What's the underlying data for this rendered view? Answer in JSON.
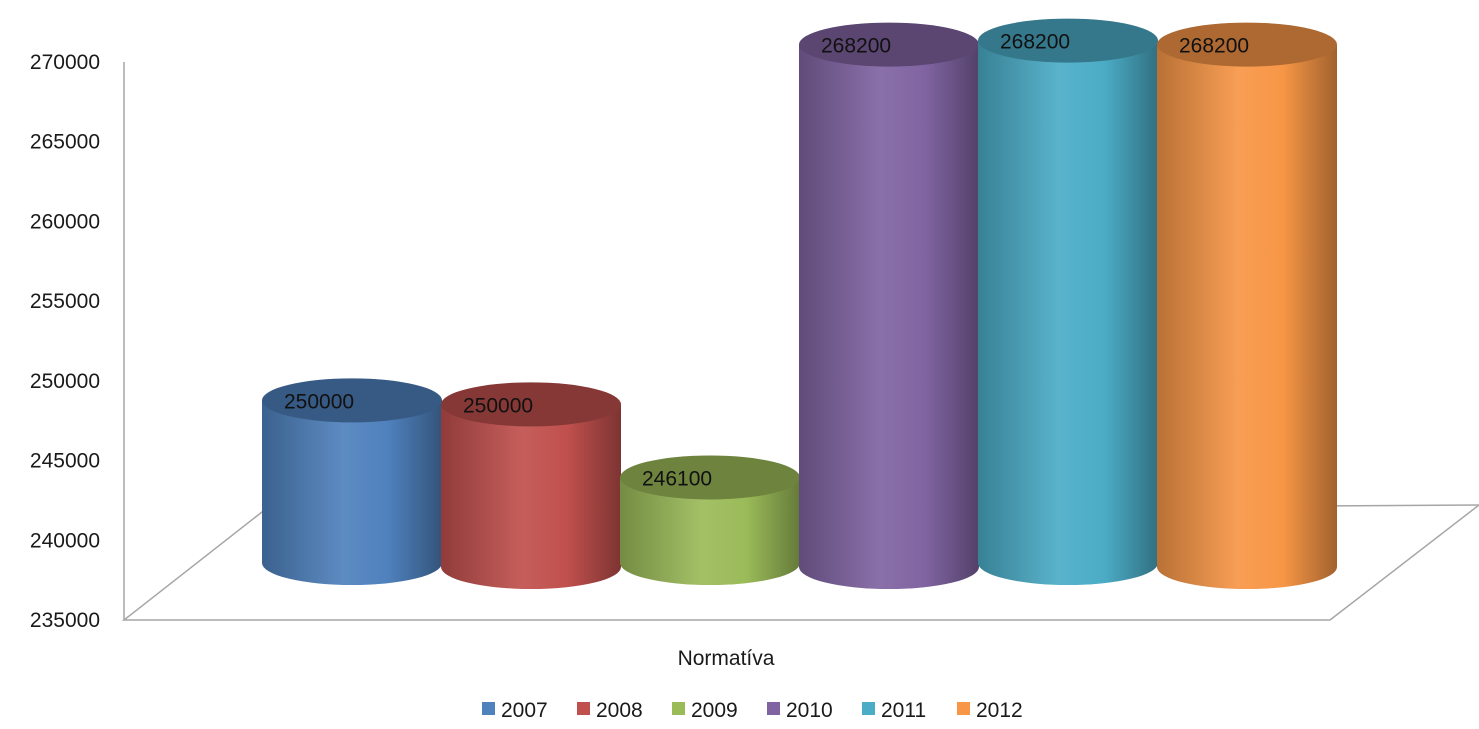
{
  "chart_data": {
    "type": "bar",
    "style": "3d-cylinder",
    "categories": [
      "Normatíva"
    ],
    "series": [
      {
        "name": "2007",
        "value": 250000,
        "label": "250000",
        "color": "#4f81bd"
      },
      {
        "name": "2008",
        "value": 250000,
        "label": "250000",
        "color": "#c0504d"
      },
      {
        "name": "2009",
        "value": 246100,
        "label": "246100",
        "color": "#9bbb59"
      },
      {
        "name": "2010",
        "value": 268200,
        "label": "268200",
        "color": "#8064a2"
      },
      {
        "name": "2011",
        "value": 268200,
        "label": "268200",
        "color": "#4bacc6"
      },
      {
        "name": "2012",
        "value": 268200,
        "label": "268200",
        "color": "#f79646"
      }
    ],
    "ylim": [
      235000,
      270000
    ],
    "yticks": [
      "235000",
      "240000",
      "245000",
      "250000",
      "255000",
      "260000",
      "265000",
      "270000"
    ],
    "grid": false,
    "legend_position": "bottom"
  }
}
